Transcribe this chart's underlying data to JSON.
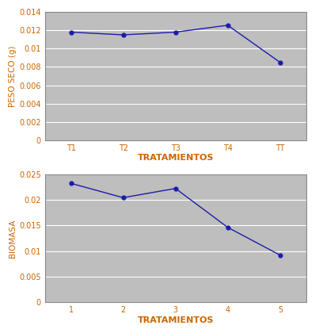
{
  "top": {
    "x_labels": [
      "T1",
      "T2",
      "T3",
      "T4",
      "TT"
    ],
    "x_values": [
      1,
      2,
      3,
      4,
      5
    ],
    "y_values": [
      0.0118,
      0.0115,
      0.0118,
      0.01255,
      0.0085
    ],
    "ylabel": "PESO SECO (g)",
    "xlabel": "TRATAMIENTOS",
    "ylim": [
      0,
      0.014
    ],
    "yticks": [
      0,
      0.002,
      0.004,
      0.006,
      0.008,
      0.01,
      0.012,
      0.014
    ],
    "ytick_labels": [
      "0",
      "0.002",
      "0.004",
      "0.006",
      "0.008",
      "0.01",
      "0.012",
      "0.014"
    ],
    "line_color": "#1C1CA8",
    "marker": "o",
    "marker_size": 3.5,
    "bg_color": "#BEBEBE"
  },
  "bottom": {
    "x_labels": [
      "1",
      "2",
      "3",
      "4",
      "5"
    ],
    "x_values": [
      1,
      2,
      3,
      4,
      5
    ],
    "y_values": [
      0.0232,
      0.0204,
      0.0222,
      0.0146,
      0.0092
    ],
    "ylabel": "BIOMASA",
    "xlabel": "TRATAMIENTOS",
    "ylim": [
      0,
      0.025
    ],
    "yticks": [
      0,
      0.005,
      0.01,
      0.015,
      0.02,
      0.025
    ],
    "ytick_labels": [
      "0",
      "0.005",
      "0.01",
      "0.015",
      "0.02",
      "0.025"
    ],
    "line_color": "#1C1CA8",
    "marker": "o",
    "marker_size": 3.5,
    "bg_color": "#BEBEBE"
  },
  "outer_bg": "#FFFFFF",
  "label_color": "#CC6600",
  "ylabel_fontsize": 7.5,
  "xlabel_fontsize": 8,
  "tick_fontsize": 7,
  "border_color": "#888888"
}
